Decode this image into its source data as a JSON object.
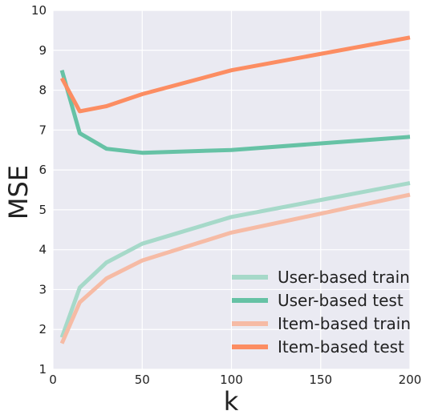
{
  "chart_data": {
    "type": "line",
    "title": "",
    "xlabel": "k",
    "ylabel": "MSE",
    "xlim": [
      0,
      200
    ],
    "ylim": [
      1,
      10
    ],
    "x_ticks": [
      0,
      50,
      100,
      150,
      200
    ],
    "y_ticks": [
      1,
      2,
      3,
      4,
      5,
      6,
      7,
      8,
      9,
      10
    ],
    "grid": true,
    "legend_position": "lower-right",
    "background": "#eaeaf2",
    "x": [
      5,
      15,
      30,
      50,
      100,
      200
    ],
    "series": [
      {
        "name": "User-based train",
        "color": "#a6d9c9",
        "values": [
          1.8,
          3.05,
          3.68,
          4.15,
          4.82,
          5.67
        ]
      },
      {
        "name": "User-based test",
        "color": "#66c2a5",
        "values": [
          8.5,
          6.92,
          6.53,
          6.43,
          6.5,
          6.83
        ]
      },
      {
        "name": "Item-based train",
        "color": "#f6bba5",
        "values": [
          1.65,
          2.68,
          3.28,
          3.73,
          4.43,
          5.38
        ]
      },
      {
        "name": "Item-based test",
        "color": "#fc8d62",
        "values": [
          8.3,
          7.47,
          7.6,
          7.9,
          8.5,
          9.32
        ]
      }
    ]
  }
}
